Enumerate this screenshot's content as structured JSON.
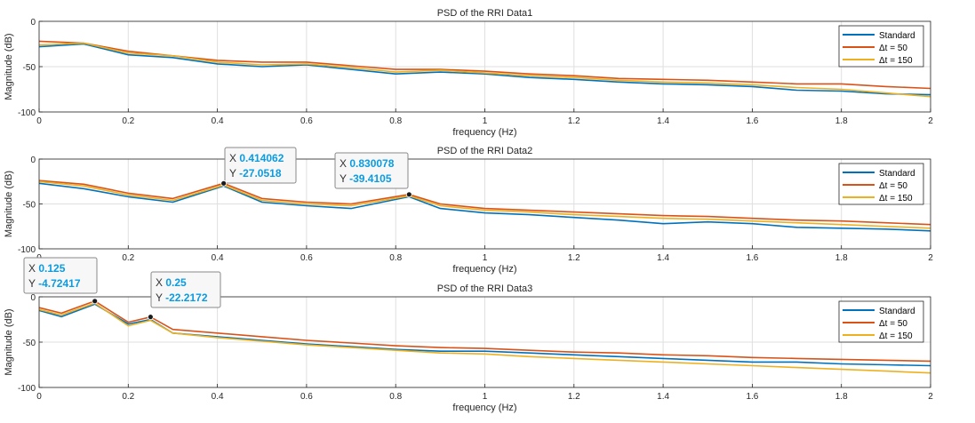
{
  "chart_data": [
    {
      "type": "line",
      "title": "PSD of the RRI Data1",
      "xlabel": "frequency (Hz)",
      "ylabel": "Magnitude (dB)",
      "xlim": [
        0,
        2
      ],
      "ylim": [
        -100,
        0
      ],
      "xticks": [
        "0",
        "0.2",
        "0.4",
        "0.6",
        "0.8",
        "1",
        "1.2",
        "1.4",
        "1.6",
        "1.8",
        "2"
      ],
      "yticks": [
        "0",
        "-50",
        "-100"
      ],
      "grid": true,
      "legend_position": "top-right",
      "series": [
        {
          "name": "Standard",
          "color": "#0072BD",
          "x": [
            0,
            0.1,
            0.2,
            0.3,
            0.4,
            0.5,
            0.6,
            0.7,
            0.8,
            0.9,
            1.0,
            1.1,
            1.2,
            1.3,
            1.4,
            1.5,
            1.6,
            1.7,
            1.8,
            1.9,
            2.0
          ],
          "y": [
            -28,
            -25,
            -37,
            -40,
            -47,
            -50,
            -48,
            -53,
            -58,
            -56,
            -58,
            -62,
            -64,
            -67,
            -69,
            -70,
            -72,
            -76,
            -77,
            -80,
            -81
          ]
        },
        {
          "name": "Δt = 50",
          "color": "#D95319",
          "x": [
            0,
            0.1,
            0.2,
            0.3,
            0.4,
            0.5,
            0.6,
            0.7,
            0.8,
            0.9,
            1.0,
            1.1,
            1.2,
            1.3,
            1.4,
            1.5,
            1.6,
            1.7,
            1.8,
            1.9,
            2.0
          ],
          "y": [
            -22,
            -24,
            -33,
            -38,
            -43,
            -45,
            -45,
            -49,
            -53,
            -53,
            -55,
            -58,
            -60,
            -63,
            -64,
            -65,
            -67,
            -69,
            -69,
            -72,
            -74
          ]
        },
        {
          "name": "Δt = 150",
          "color": "#EDB120",
          "x": [
            0,
            0.1,
            0.2,
            0.3,
            0.4,
            0.5,
            0.6,
            0.7,
            0.8,
            0.9,
            1.0,
            1.1,
            1.2,
            1.3,
            1.4,
            1.5,
            1.6,
            1.7,
            1.8,
            1.9,
            2.0
          ],
          "y": [
            -26,
            -24,
            -35,
            -38,
            -45,
            -48,
            -47,
            -51,
            -56,
            -54,
            -57,
            -60,
            -62,
            -65,
            -67,
            -68,
            -70,
            -73,
            -75,
            -79,
            -83
          ]
        }
      ],
      "datatips": []
    },
    {
      "type": "line",
      "title": "PSD of the RRI Data2",
      "xlabel": "frequency (Hz)",
      "ylabel": "Magnitude (dB)",
      "xlim": [
        0,
        2
      ],
      "ylim": [
        -100,
        0
      ],
      "xticks": [
        "0",
        "0.2",
        "0.4",
        "0.6",
        "0.8",
        "1",
        "1.2",
        "1.4",
        "1.6",
        "1.8",
        "2"
      ],
      "yticks": [
        "0",
        "-50",
        "-100"
      ],
      "grid": true,
      "legend_position": "top-right",
      "series": [
        {
          "name": "Standard",
          "color": "#0072BD",
          "x": [
            0,
            0.1,
            0.2,
            0.3,
            0.414,
            0.5,
            0.6,
            0.7,
            0.83,
            0.9,
            1.0,
            1.1,
            1.2,
            1.3,
            1.4,
            1.5,
            1.6,
            1.7,
            1.8,
            1.9,
            2.0
          ],
          "y": [
            -27,
            -33,
            -42,
            -48,
            -30,
            -48,
            -52,
            -55,
            -42,
            -55,
            -60,
            -62,
            -65,
            -68,
            -72,
            -70,
            -72,
            -76,
            -77,
            -78,
            -80
          ]
        },
        {
          "name": "Δt = 50",
          "color": "#D95319",
          "x": [
            0,
            0.1,
            0.2,
            0.3,
            0.414,
            0.5,
            0.6,
            0.7,
            0.83,
            0.9,
            1.0,
            1.1,
            1.2,
            1.3,
            1.4,
            1.5,
            1.6,
            1.7,
            1.8,
            1.9,
            2.0
          ],
          "y": [
            -24,
            -28,
            -38,
            -44,
            -27.0518,
            -44,
            -48,
            -50,
            -39.4105,
            -50,
            -55,
            -57,
            -59,
            -61,
            -63,
            -64,
            -66,
            -68,
            -69,
            -71,
            -73
          ]
        },
        {
          "name": "Δt = 150",
          "color": "#EDB120",
          "x": [
            0,
            0.1,
            0.2,
            0.3,
            0.414,
            0.5,
            0.6,
            0.7,
            0.83,
            0.9,
            1.0,
            1.1,
            1.2,
            1.3,
            1.4,
            1.5,
            1.6,
            1.7,
            1.8,
            1.9,
            2.0
          ],
          "y": [
            -25,
            -30,
            -40,
            -46,
            -29,
            -46,
            -50,
            -52,
            -41,
            -52,
            -57,
            -59,
            -62,
            -64,
            -66,
            -67,
            -69,
            -71,
            -73,
            -75,
            -77
          ]
        }
      ],
      "datatips": [
        {
          "label_x": "X",
          "label_y": "Y",
          "x": 0.414062,
          "y": -27.0518,
          "x_text": "0.414062",
          "y_text": "-27.0518"
        },
        {
          "label_x": "X",
          "label_y": "Y",
          "x": 0.830078,
          "y": -39.4105,
          "x_text": "0.830078",
          "y_text": "-39.4105"
        }
      ]
    },
    {
      "type": "line",
      "title": "PSD of the RRI Data3",
      "xlabel": "frequency (Hz)",
      "ylabel": "Magnitude (dB)",
      "xlim": [
        0,
        2
      ],
      "ylim": [
        -100,
        0
      ],
      "xticks": [
        "0",
        "0.2",
        "0.4",
        "0.6",
        "0.8",
        "1",
        "1.2",
        "1.4",
        "1.6",
        "1.8",
        "2"
      ],
      "yticks": [
        "0",
        "-50",
        "-100"
      ],
      "grid": true,
      "legend_position": "top-right",
      "series": [
        {
          "name": "Standard",
          "color": "#0072BD",
          "x": [
            0,
            0.05,
            0.125,
            0.2,
            0.25,
            0.3,
            0.4,
            0.5,
            0.6,
            0.7,
            0.8,
            0.9,
            1.0,
            1.1,
            1.2,
            1.3,
            1.4,
            1.5,
            1.6,
            1.7,
            1.8,
            1.9,
            2.0
          ],
          "y": [
            -15,
            -22,
            -8,
            -30,
            -25,
            -40,
            -44,
            -48,
            -52,
            -55,
            -58,
            -60,
            -60,
            -62,
            -64,
            -66,
            -68,
            -70,
            -72,
            -72,
            -74,
            -75,
            -76
          ]
        },
        {
          "name": "Δt = 50",
          "color": "#D95319",
          "x": [
            0,
            0.05,
            0.125,
            0.2,
            0.25,
            0.3,
            0.4,
            0.5,
            0.6,
            0.7,
            0.8,
            0.9,
            1.0,
            1.1,
            1.2,
            1.3,
            1.4,
            1.5,
            1.6,
            1.7,
            1.8,
            1.9,
            2.0
          ],
          "y": [
            -12,
            -18,
            -4.72417,
            -28,
            -22.2172,
            -36,
            -40,
            -44,
            -48,
            -51,
            -54,
            -56,
            -57,
            -59,
            -61,
            -62,
            -64,
            -65,
            -67,
            -68,
            -69,
            -70,
            -71
          ]
        },
        {
          "name": "Δt = 150",
          "color": "#EDB120",
          "x": [
            0,
            0.05,
            0.125,
            0.2,
            0.25,
            0.3,
            0.4,
            0.5,
            0.6,
            0.7,
            0.8,
            0.9,
            1.0,
            1.1,
            1.2,
            1.3,
            1.4,
            1.5,
            1.6,
            1.7,
            1.8,
            1.9,
            2.0
          ],
          "y": [
            -14,
            -20,
            -7,
            -32,
            -26,
            -40,
            -45,
            -49,
            -53,
            -56,
            -59,
            -62,
            -63,
            -66,
            -68,
            -70,
            -72,
            -74,
            -76,
            -78,
            -80,
            -82,
            -84
          ]
        }
      ],
      "datatips": [
        {
          "label_x": "X",
          "label_y": "Y",
          "x": 0.125,
          "y": -4.72417,
          "x_text": "0.125",
          "y_text": "-4.72417"
        },
        {
          "label_x": "X",
          "label_y": "Y",
          "x": 0.25,
          "y": -22.2172,
          "x_text": "0.25",
          "y_text": "-22.2172"
        }
      ]
    }
  ]
}
